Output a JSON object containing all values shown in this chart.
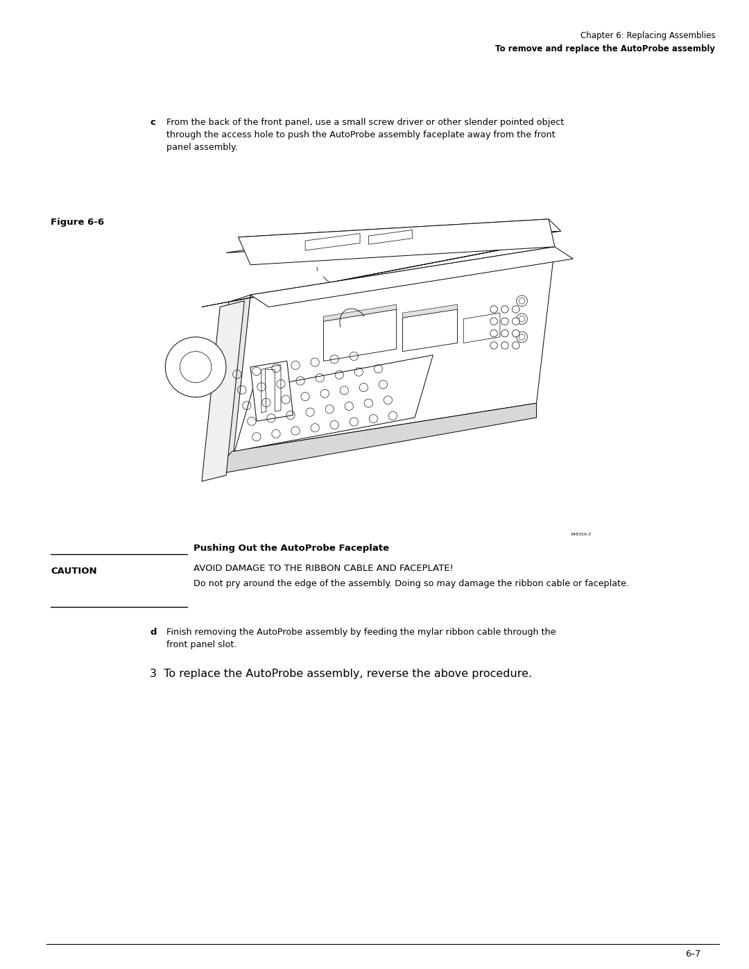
{
  "page_width": 10.8,
  "page_height": 13.97,
  "bg_color": "#ffffff",
  "header_line1": "Chapter 6: Replacing Assemblies",
  "header_line2": "To remove and replace the AutoProbe assembly",
  "step_c_label": "c",
  "step_c_text": "From the back of the front panel, use a small screw driver or other slender pointed object\nthrough the access hole to push the AutoProbe assembly faceplate away from the front\npanel assembly.",
  "figure_label": "Figure 6-6",
  "caption_text": "Pushing Out the AutoProbe Faceplate",
  "caution_label": "CAUTION",
  "caution_title": "AVOID DAMAGE TO THE RIBBON CABLE AND FACEPLATE!",
  "caution_text": "Do not pry around the edge of the assembly. Doing so may damage the ribbon cable or faceplate.",
  "step_d_label": "d",
  "step_d_text": "Finish removing the AutoProbe assembly by feeding the mylar ribbon cable through the\nfront panel slot.",
  "step3_text": "3  To replace the AutoProbe assembly, reverse the above procedure.",
  "footer_text": "6–7",
  "text_color": "#000000",
  "bg_color2": "#ffffff"
}
